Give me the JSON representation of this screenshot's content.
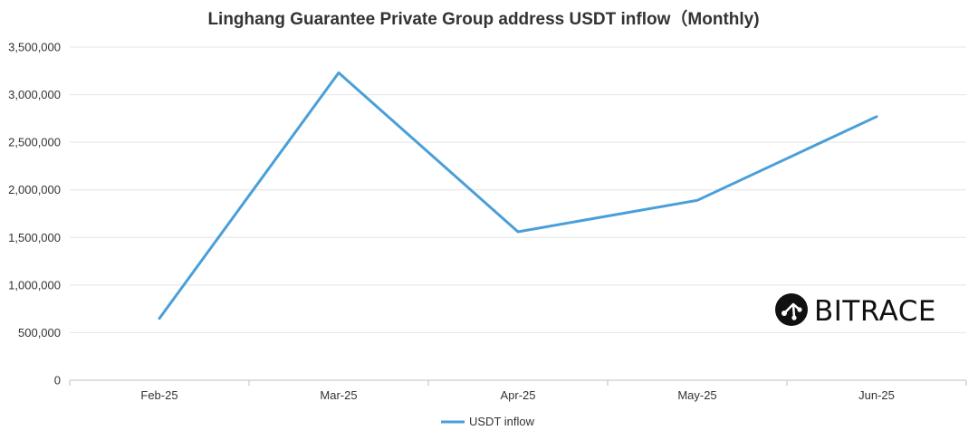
{
  "chart_data": {
    "type": "line",
    "title": "Linghang Guarantee Private Group address USDT inflow（Monthly)",
    "xlabel": "",
    "ylabel": "",
    "categories": [
      "Feb-25",
      "Mar-25",
      "Apr-25",
      "May-25",
      "Jun-25"
    ],
    "series": [
      {
        "name": "USDT inflow",
        "values": [
          650000,
          3230000,
          1560000,
          1890000,
          2770000
        ],
        "color": "#4a9fd8"
      }
    ],
    "ylim": [
      0,
      3500000
    ],
    "yticks": [
      0,
      500000,
      1000000,
      1500000,
      2000000,
      2500000,
      3000000,
      3500000
    ],
    "ytick_labels": [
      "0",
      "500,000",
      "1,000,000",
      "1,500,000",
      "2,000,000",
      "2,500,000",
      "3,000,000",
      "3,500,000"
    ],
    "grid": true,
    "legend_position": "bottom-center"
  },
  "watermark": {
    "text": "BITRACE",
    "icon": "bitrace-logo-icon"
  },
  "colors": {
    "series": "#4a9fd8",
    "grid": "#e4e4e4",
    "axis": "#bfbfbf",
    "text": "#333333"
  }
}
